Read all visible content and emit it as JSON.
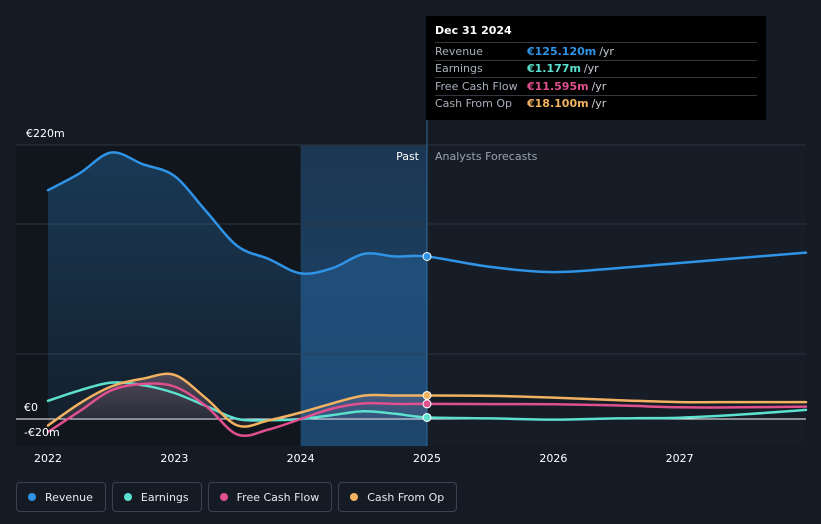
{
  "tooltip": {
    "date": "Dec 31 2024",
    "rows": [
      {
        "label": "Revenue",
        "value": "€125.120m",
        "unit": "/yr",
        "color": "#2f93e6"
      },
      {
        "label": "Earnings",
        "value": "€1.177m",
        "unit": "/yr",
        "color": "#5ce1cf"
      },
      {
        "label": "Free Cash Flow",
        "value": "€11.595m",
        "unit": "/yr",
        "color": "#e0508f"
      },
      {
        "label": "Cash From Op",
        "value": "€18.100m",
        "unit": "/yr",
        "color": "#f2b261"
      }
    ]
  },
  "legend": [
    {
      "label": "Revenue",
      "color": "#2f93e6"
    },
    {
      "label": "Earnings",
      "color": "#5ce1cf"
    },
    {
      "label": "Free Cash Flow",
      "color": "#e0508f"
    },
    {
      "label": "Cash From Op",
      "color": "#f2b261"
    }
  ],
  "chart_data": {
    "type": "line",
    "y_tick_labels": [
      "€220m",
      "€0",
      "-€20m"
    ],
    "ylim": [
      -20,
      220
    ],
    "xlim": [
      2022.0,
      2028.0
    ],
    "x_ticks": [
      2022,
      2023,
      2024,
      2025,
      2026,
      2027
    ],
    "past_label": "Past",
    "forecast_label": "Analysts Forecasts",
    "past_shade_start": 2024.0,
    "divider_x": 2025.0,
    "series": [
      {
        "name": "Revenue",
        "color": "#2f93e6",
        "points": [
          [
            2022.0,
            176
          ],
          [
            2022.25,
            189
          ],
          [
            2022.5,
            205
          ],
          [
            2022.75,
            196
          ],
          [
            2023.0,
            187
          ],
          [
            2023.25,
            160
          ],
          [
            2023.5,
            133
          ],
          [
            2023.75,
            123
          ],
          [
            2024.0,
            112
          ],
          [
            2024.25,
            116
          ],
          [
            2024.5,
            127
          ],
          [
            2024.75,
            125
          ],
          [
            2025.0,
            125
          ],
          [
            2025.5,
            117
          ],
          [
            2026.0,
            113
          ],
          [
            2026.5,
            116
          ],
          [
            2027.0,
            120
          ],
          [
            2027.5,
            124
          ],
          [
            2028.0,
            128
          ]
        ]
      },
      {
        "name": "Earnings",
        "color": "#5ce1cf",
        "points": [
          [
            2022.0,
            14
          ],
          [
            2022.25,
            22
          ],
          [
            2022.5,
            28
          ],
          [
            2022.75,
            26
          ],
          [
            2023.0,
            20
          ],
          [
            2023.25,
            10
          ],
          [
            2023.5,
            0
          ],
          [
            2023.75,
            -1
          ],
          [
            2024.0,
            0
          ],
          [
            2024.25,
            3
          ],
          [
            2024.5,
            6
          ],
          [
            2024.75,
            4
          ],
          [
            2025.0,
            1.2
          ],
          [
            2025.5,
            0.5
          ],
          [
            2026.0,
            -0.5
          ],
          [
            2026.5,
            0.5
          ],
          [
            2027.0,
            1
          ],
          [
            2027.5,
            3.5
          ],
          [
            2028.0,
            7
          ]
        ]
      },
      {
        "name": "Free Cash Flow",
        "color": "#e0508f",
        "points": [
          [
            2022.0,
            -10
          ],
          [
            2022.25,
            6
          ],
          [
            2022.5,
            22
          ],
          [
            2022.75,
            27
          ],
          [
            2023.0,
            25
          ],
          [
            2023.25,
            10
          ],
          [
            2023.5,
            -12
          ],
          [
            2023.75,
            -8
          ],
          [
            2024.0,
            0
          ],
          [
            2024.25,
            8
          ],
          [
            2024.5,
            12
          ],
          [
            2024.75,
            11.6
          ],
          [
            2025.0,
            11.6
          ],
          [
            2025.5,
            11.5
          ],
          [
            2026.0,
            11.3
          ],
          [
            2026.5,
            10.5
          ],
          [
            2027.0,
            9
          ],
          [
            2027.5,
            9
          ],
          [
            2028.0,
            9.5
          ]
        ]
      },
      {
        "name": "Cash From Op",
        "color": "#f2b261",
        "points": [
          [
            2022.0,
            -5
          ],
          [
            2022.25,
            12
          ],
          [
            2022.5,
            25
          ],
          [
            2022.75,
            31
          ],
          [
            2023.0,
            34
          ],
          [
            2023.25,
            16
          ],
          [
            2023.5,
            -5
          ],
          [
            2023.75,
            -1
          ],
          [
            2024.0,
            5
          ],
          [
            2024.25,
            12
          ],
          [
            2024.5,
            18
          ],
          [
            2024.75,
            18.1
          ],
          [
            2025.0,
            18.1
          ],
          [
            2025.5,
            17.8
          ],
          [
            2026.0,
            16.5
          ],
          [
            2026.5,
            14.5
          ],
          [
            2027.0,
            13
          ],
          [
            2027.5,
            13
          ],
          [
            2028.0,
            13
          ]
        ]
      }
    ]
  }
}
